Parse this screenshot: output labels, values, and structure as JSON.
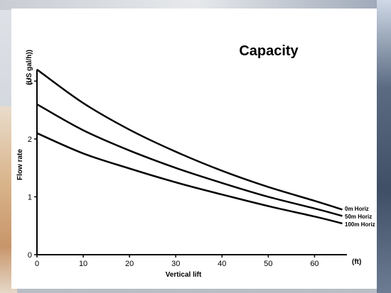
{
  "chart_data": {
    "type": "line",
    "title": "Capacity",
    "xlabel": "Vertical lift",
    "ylabel": "Flow rate",
    "x_unit": "(ft)",
    "y_unit": "(US gal/h))",
    "xlim": [
      0,
      67
    ],
    "ylim": [
      0,
      3.2
    ],
    "x_ticks": [
      0,
      10,
      20,
      30,
      40,
      50,
      60
    ],
    "y_ticks": [
      0,
      1,
      2,
      3
    ],
    "grid": false,
    "series": [
      {
        "name": "0m Horiz",
        "x": [
          0,
          10,
          20,
          30,
          40,
          50,
          60,
          66
        ],
        "y": [
          3.2,
          2.62,
          2.16,
          1.78,
          1.45,
          1.17,
          0.93,
          0.78
        ]
      },
      {
        "name": "50m Horiz",
        "x": [
          0,
          10,
          20,
          30,
          40,
          50,
          60,
          66
        ],
        "y": [
          2.6,
          2.15,
          1.8,
          1.5,
          1.24,
          1.0,
          0.8,
          0.67
        ]
      },
      {
        "name": "100m Horiz",
        "x": [
          0,
          10,
          20,
          30,
          40,
          50,
          60,
          66
        ],
        "y": [
          2.1,
          1.75,
          1.49,
          1.25,
          1.04,
          0.84,
          0.66,
          0.54
        ]
      }
    ]
  }
}
